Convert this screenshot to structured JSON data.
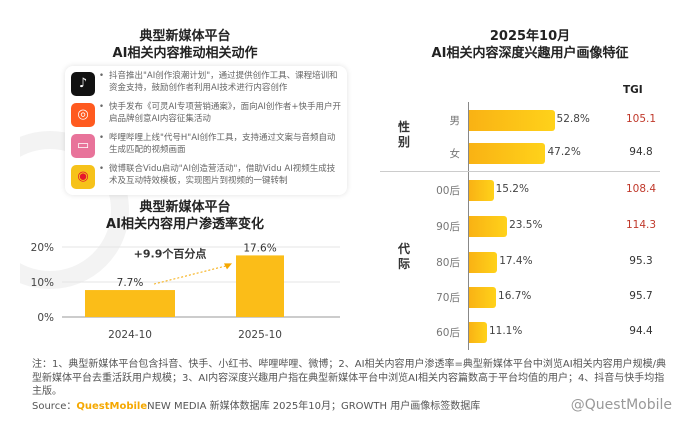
{
  "left": {
    "title_line1": "典型新媒体平台",
    "title_line2": "AI相关内容推动相关动作",
    "items": [
      {
        "icon": "douyin-icon",
        "color": "#111111",
        "glyph": "♪",
        "text": "抖音推出\"AI创作浪潮计划\"，通过提供创作工具、课程培训和资金支持，鼓励创作者利用AI技术进行内容创作"
      },
      {
        "icon": "kuaishou-icon",
        "color": "#ff5a1f",
        "glyph": "◎",
        "text": "快手发布《可灵AI专项营销通案》，面向AI创作者+快手用户开启品牌创意AI内容征集活动"
      },
      {
        "icon": "bilibili-icon",
        "color": "#e8739a",
        "glyph": "▭",
        "text": "哔哩哔哩上线\"代号H\"AI创作工具，支持通过文案与音频自动生成匹配的视频画面"
      },
      {
        "icon": "weibo-icon",
        "color": "#f6c21a",
        "glyph": "◉",
        "text": "微博联合Vidu启动\"AI创造营活动\"，借助Vidu AI视频生成技术及互动特效模板，实现图片到视频的一键转制"
      }
    ],
    "chart_title_line1": "典型新媒体平台",
    "chart_title_line2": "AI相关内容用户渗透率变化",
    "annotation": "+9.9个百分点"
  },
  "chart_data": [
    {
      "type": "bar",
      "title": "典型新媒体平台AI相关内容用户渗透率变化",
      "categories": [
        "2024-10",
        "2025-10"
      ],
      "values": [
        7.7,
        17.6
      ],
      "value_labels": [
        "7.7%",
        "17.6%"
      ],
      "yticks": [
        "0%",
        "10%",
        "20%"
      ],
      "ylim": [
        0,
        20
      ],
      "annotation": "+9.9个百分点"
    },
    {
      "type": "bar",
      "orientation": "horizontal",
      "title": "2025年10月 AI相关内容深度兴趣用户画像特征",
      "groups": [
        {
          "name": "性别",
          "categories": [
            "男",
            "女"
          ],
          "values": [
            52.8,
            47.2
          ],
          "value_labels": [
            "52.8%",
            "47.2%"
          ],
          "tgi": [
            "105.1",
            "94.8"
          ],
          "tgi_high": [
            true,
            false
          ]
        },
        {
          "name": "代际",
          "categories": [
            "00后",
            "90后",
            "80后",
            "70后",
            "60后"
          ],
          "values": [
            15.2,
            23.5,
            17.4,
            16.7,
            11.1
          ],
          "value_labels": [
            "15.2%",
            "23.5%",
            "17.4%",
            "16.7%",
            "11.1%"
          ],
          "tgi": [
            "108.4",
            "114.3",
            "95.3",
            "95.7",
            "94.4"
          ],
          "tgi_high": [
            true,
            true,
            false,
            false,
            false
          ]
        }
      ],
      "tgi_header": "TGI"
    }
  ],
  "right": {
    "title_line1": "2025年10月",
    "title_line2": "AI相关内容深度兴趣用户画像特征",
    "group1_label": "性\n别",
    "group2_label": "代\n际"
  },
  "colors": {
    "bar": "#f9b214",
    "tgi_high": "#c0392b",
    "brand": "#f5a800"
  },
  "notes": {
    "text": "注：1、典型新媒体平台包含抖音、快手、小红书、哔哩哔哩、微博；2、AI相关内容用户渗透率=典型新媒体平台中浏览AI相关内容用户规模/典型新媒体平台去重活跃用户规模；3、AI内容深度兴趣用户指在典型新媒体平台中浏览AI相关内容篇数高于平台均值的用户；4、抖音与快手均指主版。",
    "source_prefix": "Source：",
    "source_brand": "QuestMobile",
    "source_rest": " NEW MEDIA 新媒体数据库 2025年10月；GROWTH 用户画像标签数据库"
  },
  "watermark": {
    "text": "QUEST MOBILE",
    "handle": "@QuestMobile"
  }
}
